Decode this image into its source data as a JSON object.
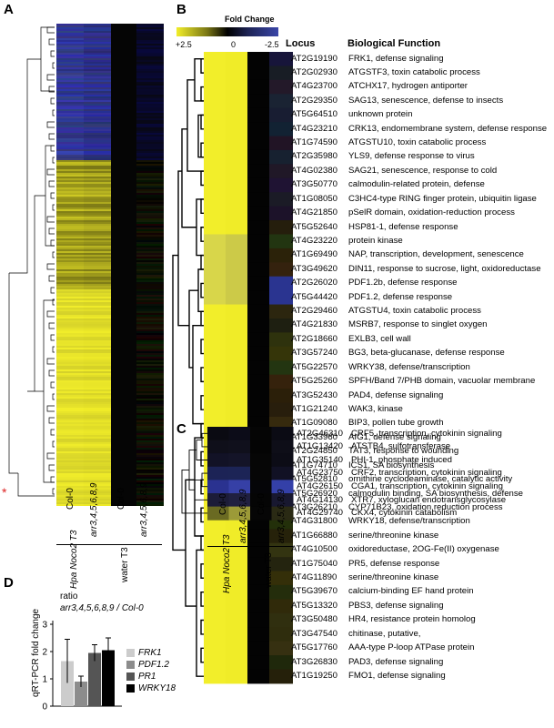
{
  "panels": {
    "a": "A",
    "b": "B",
    "c": "C",
    "d": "D"
  },
  "colorbar": {
    "title": "Fold Change",
    "min_label": "+2.5",
    "mid_label": "0",
    "max_label": "-2.5"
  },
  "colors": {
    "up": "#f2ee2a",
    "mid": "#000000",
    "down": "#3a46a8"
  },
  "headers": {
    "locus": "Locus",
    "function": "Biological Function"
  },
  "columns": {
    "col0": "Col-0",
    "mutant": "arr3,4,5,6,8,9",
    "hpa": "Hpa Noco2 T3",
    "water": "water T3"
  },
  "heatmap_b_rows": [
    {
      "locus": "AT2G19190",
      "fn": "FRK1, defense signaling"
    },
    {
      "locus": "AT2G02930",
      "fn": "ATGSTF3, toxin catabolic process"
    },
    {
      "locus": "AT4G23700",
      "fn": "ATCHX17, hydrogen antiporter"
    },
    {
      "locus": "AT2G29350",
      "fn": "SAG13, senescence, defense to insects"
    },
    {
      "locus": "AT5G64510",
      "fn": "unknown protein"
    },
    {
      "locus": "AT4G23210",
      "fn": "CRK13, endomembrane system, defense response"
    },
    {
      "locus": "AT1G74590",
      "fn": "ATGSTU10, toxin catabolic process"
    },
    {
      "locus": "AT2G35980",
      "fn": "YLS9, defense response to virus"
    },
    {
      "locus": "AT4G02380",
      "fn": "SAG21, senescence, response to cold"
    },
    {
      "locus": "AT3G50770",
      "fn": "calmodulin-related protein, defense"
    },
    {
      "locus": "AT1G08050",
      "fn": "C3HC4-type RING finger protein, ubiquitin ligase"
    },
    {
      "locus": "AT4G21850",
      "fn": "pSelR domain, oxidation-reduction process"
    },
    {
      "locus": "AT5G52640",
      "fn": "HSP81-1, defense response"
    },
    {
      "locus": "AT4G23220",
      "fn": "protein kinase"
    },
    {
      "locus": "AT1G69490",
      "fn": "NAP, transcription, development, senescence"
    },
    {
      "locus": "AT3G49620",
      "fn": "DIN11, response to sucrose, light, oxidoreductase"
    },
    {
      "locus": "AT2G26020",
      "fn": "PDF1.2b, defense response"
    },
    {
      "locus": "AT5G44420",
      "fn": "PDF1.2, defense response"
    },
    {
      "locus": "AT2G29460",
      "fn": "ATGSTU4, toxin catabolic process"
    },
    {
      "locus": "AT4G21830",
      "fn": "MSRB7, response to singlet oxygen"
    },
    {
      "locus": "AT2G18660",
      "fn": "EXLB3, cell wall"
    },
    {
      "locus": "AT3G57240",
      "fn": "BG3, beta-glucanase, defense response"
    },
    {
      "locus": "AT5G22570",
      "fn": "WRKY38, defense/transcription"
    },
    {
      "locus": "AT5G25260",
      "fn": "SPFH/Band 7/PHB domain, vacuolar membrane"
    },
    {
      "locus": "AT3G52430",
      "fn": "PAD4, defense signaling"
    },
    {
      "locus": "AT1G21240",
      "fn": "WAK3, kinase"
    },
    {
      "locus": "AT1G09080",
      "fn": "BIP3, pollen tube growth"
    },
    {
      "locus": "AT1G33960",
      "fn": "AIG1, defense signaling"
    },
    {
      "locus": "AT2G24850",
      "fn": "TAT3, response to wounding"
    },
    {
      "locus": "AT1G74710",
      "fn": "ICS1, SA biosynthesis"
    },
    {
      "locus": "AT5G52810",
      "fn": "ornithine cyclodeaminase, catalytic activity"
    },
    {
      "locus": "AT5G26920",
      "fn": "calmodulin binding, SA biosynthesis, defense"
    },
    {
      "locus": "AT3G26210",
      "fn": "CYP71B23, oxidation reduction process"
    },
    {
      "locus": "AT4G31800",
      "fn": "WRKY18, defense/transcription"
    },
    {
      "locus": "AT1G66880",
      "fn": "serine/threonine kinase"
    },
    {
      "locus": "AT4G10500",
      "fn": "oxidoreductase, 2OG-Fe(II) oxygenase"
    },
    {
      "locus": "AT1G75040",
      "fn": "PR5, defense response"
    },
    {
      "locus": "AT4G11890",
      "fn": "serine/threonine kinase"
    },
    {
      "locus": "AT5G39670",
      "fn": "calcium-binding EF hand protein"
    },
    {
      "locus": "AT5G13320",
      "fn": "PBS3, defense signaling"
    },
    {
      "locus": "AT3G50480",
      "fn": "HR4, resistance protein homolog"
    },
    {
      "locus": "AT3G47540",
      "fn": "chitinase, putative,"
    },
    {
      "locus": "AT5G17760",
      "fn": "AAA-type P-loop ATPase protein"
    },
    {
      "locus": "AT3G26830",
      "fn": "PAD3, defense signaling"
    },
    {
      "locus": "AT1G19250",
      "fn": "FMO1, defense signaling"
    }
  ],
  "heatmap_c_rows": [
    {
      "locus": "AT2G46310",
      "fn": "CRF5, transcription, cytokinin signaling"
    },
    {
      "locus": "AT1G13420",
      "fn": "ATSTB4, sulfotransferase"
    },
    {
      "locus": "AT1G35140",
      "fn": "PHI-1, phosphate induced"
    },
    {
      "locus": "AT4G23750",
      "fn": "CRF2, transcription, cytokinin signaling"
    },
    {
      "locus": "AT4G26150",
      "fn": "CGA1, transcription, cytokinin signaling"
    },
    {
      "locus": "AT4G14130",
      "fn": "XTR7, xyloglucan endotransglycosylase"
    },
    {
      "locus": "AT4G29740",
      "fn": "CKX4, cytokinin catabolism"
    }
  ],
  "chart_data": {
    "type": "bar",
    "title": "ratio",
    "subtitle": "arr3,4,5,6,8,9 / Col-0",
    "ylabel": "qRT-PCR fold change",
    "ylim": [
      0,
      3
    ],
    "yticks": [
      "0",
      "1",
      "2",
      "3"
    ],
    "categories": [
      "FRK1",
      "PDF1.2",
      "PR1",
      "WRKY18"
    ],
    "values": [
      1.65,
      0.9,
      1.95,
      2.05
    ],
    "errors": [
      0.8,
      0.2,
      0.3,
      0.45
    ],
    "bar_colors": [
      "#cccccc",
      "#8c8c8c",
      "#555555",
      "#000000"
    ]
  }
}
